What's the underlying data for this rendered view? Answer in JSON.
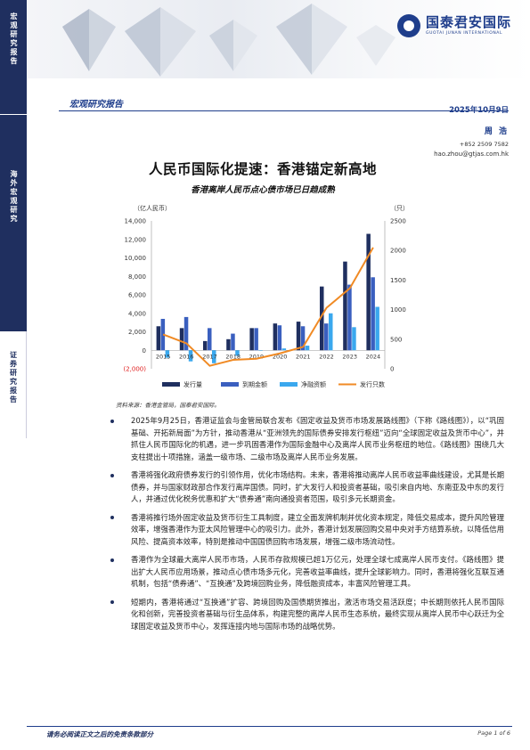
{
  "sidebar": {
    "section1": "宏观研究报告",
    "section2": "海外宏观研究",
    "section3": "证券研究报告"
  },
  "header": {
    "logo_cn": "国泰君安国际",
    "logo_en": "GUOTAI JUNAN INTERNATIONAL",
    "report_type": "宏观研究报告",
    "date": "2025年10月9日"
  },
  "author": {
    "name": "周 浩",
    "phone": "+852 2509 7582",
    "email": "hao.zhou@gtjas.com.hk"
  },
  "title": "人民币国际化提速：香港锚定新高地",
  "subtitle": "香港离岸人民币点心债市场已日趋成熟",
  "chart_data": {
    "type": "bar",
    "categories": [
      "2015",
      "2016",
      "2017",
      "2018",
      "2019",
      "2020",
      "2021",
      "2022",
      "2023",
      "2024"
    ],
    "ylabel_left": "（亿人民币）",
    "ylabel_right": "（只）",
    "ylim_left": [
      -2000,
      14000
    ],
    "ylim_right": [
      0,
      2500
    ],
    "left_ticks": [
      "14,000",
      "12,000",
      "10,000",
      "8,000",
      "6,000",
      "4,000",
      "2,000",
      "0",
      "(2,000)"
    ],
    "right_ticks": [
      "2500",
      "2000",
      "1500",
      "1000",
      "500",
      "0"
    ],
    "series": [
      {
        "name": "发行量",
        "axis": "left",
        "color": "#1f2f5f",
        "values": [
          2600,
          2400,
          1000,
          1200,
          2400,
          2900,
          3100,
          6900,
          9600,
          12600
        ]
      },
      {
        "name": "到期金额",
        "axis": "left",
        "color": "#3a5fbf",
        "values": [
          3400,
          3600,
          2400,
          1800,
          2400,
          2700,
          2600,
          2900,
          7100,
          7900
        ]
      },
      {
        "name": "净融资额",
        "axis": "left",
        "color": "#3aa8ee",
        "values": [
          -800,
          -1200,
          -1400,
          -600,
          0,
          200,
          500,
          4000,
          2500,
          4700
        ]
      },
      {
        "name": "发行只数",
        "axis": "right",
        "type": "line",
        "color": "#f08a24",
        "values": [
          580,
          430,
          50,
          150,
          170,
          260,
          370,
          1030,
          1360,
          2050
        ]
      }
    ]
  },
  "source": "资料来源：香港金管局，国泰君安国际。",
  "bullets": [
    "2025年9月25日，香港证监会与金管局联合发布《固定收益及货币市场发展路线图》（下称《路线图》），以“巩固基础、开拓新局面”为方针，推动香港从“亚洲领先的国际债券安排发行枢纽”迈向“全球固定收益及货币中心”，并抓住人民币国际化的机遇，进一步巩固香港作为国际金融中心及离岸人民币业务枢纽的地位。《路线图》围绕几大支柱提出十项措施，涵盖一级市场、二级市场及离岸人民币业务发展。",
    "香港将强化政府债券发行的引领作用，优化市场结构。未来，香港将推动离岸人民币收益率曲线建设，尤其是长期债券，并与国家财政部合作发行离岸国债。同时，扩大发行人和投资者基础，吸引来自内地、东南亚及中东的发行人，并通过优化税务优惠和扩大“债券通”南向通投资者范围，吸引多元长期资金。",
    "香港将推行场外固定收益及货币衍生工具制度，建立全面发牌机制并优化资本规定，降低交易成本，提升风险管理效率，增强香港作为亚太风险管理中心的吸引力。此外，香港计划发展回购交易中央对手方结算系统，以降低信用风险、提高资本效率，特别是推动中国国债回购市场发展，增强二级市场流动性。",
    "香港作为全球最大离岸人民币市场，人民币存款规模已超1万亿元，处理全球七成离岸人民币支付。《路线图》提出扩大人民币应用场景，推动点心债市场多元化，完善收益率曲线，提升全球影响力。同时，香港将强化互联互通机制，包括“债券通”、“互换通”及跨境回购业务，降低融资成本，丰富风险管理工具。",
    "短期内，香港将通过“互换通”扩容、跨境回购及国债期货推出，激活市场交易活跃度；中长期则依托人民币国际化和创新，完善投资者基础与衍生品体系，构建完整的离岸人民币生态系统，最终实现从离岸人民币中心跃迁为全球固定收益及货币中心，发挥连接内地与国际市场的战略优势。"
  ],
  "footer": {
    "disclaimer": "请务必阅读正文之后的免责条款部分",
    "page": "Page 1 of 6"
  }
}
